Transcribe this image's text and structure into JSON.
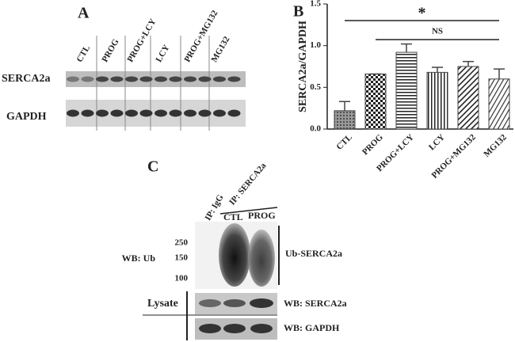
{
  "panel_a": {
    "label": "A",
    "lanes": [
      "CTL",
      "PROG",
      "PROG+LCY",
      "LCY",
      "PROG+MG132",
      "MG132"
    ],
    "rows": [
      "SERCA2a",
      "GAPDH"
    ]
  },
  "chart_data": {
    "type": "bar",
    "panel_label": "B",
    "y_label": "SERCA2a/GAPDH",
    "categories": [
      "CTL",
      "PROG",
      "PROG+LCY",
      "LCY",
      "PROG+MG132",
      "MG132"
    ],
    "values": [
      0.22,
      0.66,
      0.92,
      0.68,
      0.75,
      0.6
    ],
    "errors": [
      0.11,
      0,
      0.1,
      0.06,
      0.06,
      0.12
    ],
    "color": "#444444",
    "ylim": [
      0,
      1.5
    ],
    "yticks": [
      {
        "value": 0,
        "label": "0.0"
      },
      {
        "value": 0.5,
        "label": "0.5"
      },
      {
        "value": 1,
        "label": "1.0"
      },
      {
        "value": 1.5,
        "label": "1.5"
      }
    ],
    "annotations": [
      "*",
      "NS"
    ]
  },
  "panel_c": {
    "label": "C",
    "ip_labels": [
      "IP: IgG",
      "IP: SERCA2a"
    ],
    "lanes": [
      "CTL",
      "PROG"
    ],
    "markers": [
      "250",
      "150",
      "100"
    ],
    "wb_ub": "WB: Ub",
    "ub_label": "Ub-SERCA2a",
    "lysate": "Lysate",
    "lysate_rows": [
      "WB: SERCA2a",
      "WB: GAPDH"
    ]
  }
}
